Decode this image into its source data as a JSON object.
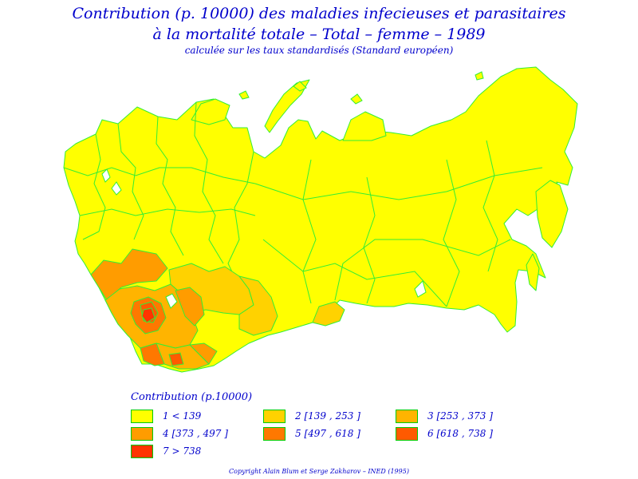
{
  "title_line1": "Contribution (p. 10000) des maladies infecieuses et parasitaires",
  "title_line2": "à la mortalité totale  –  Total  –  femme  –  1989",
  "subtitle": "calculée sur les taux standardisés (Standard européen)",
  "legend": {
    "title": "Contribution  (p.10000)",
    "items": [
      {
        "label": "1  <  139",
        "color": "#ffff00"
      },
      {
        "label": "2  [139  ,  253  ]",
        "color": "#ffd200"
      },
      {
        "label": "3  [253  ,  373  ]",
        "color": "#ffb400"
      },
      {
        "label": "4  [373  ,  497  ]",
        "color": "#ff9c00"
      },
      {
        "label": "5  [497  ,  618  ]",
        "color": "#ff7800"
      },
      {
        "label": "6  [618  ,  738  ]",
        "color": "#ff5a00"
      },
      {
        "label": "7  >  738",
        "color": "#ff3300"
      }
    ]
  },
  "border_color": "#33ee33",
  "copyright": "Copyright  Alain  Blum  et  Serge  Zakharov  –  INED (1995)"
}
